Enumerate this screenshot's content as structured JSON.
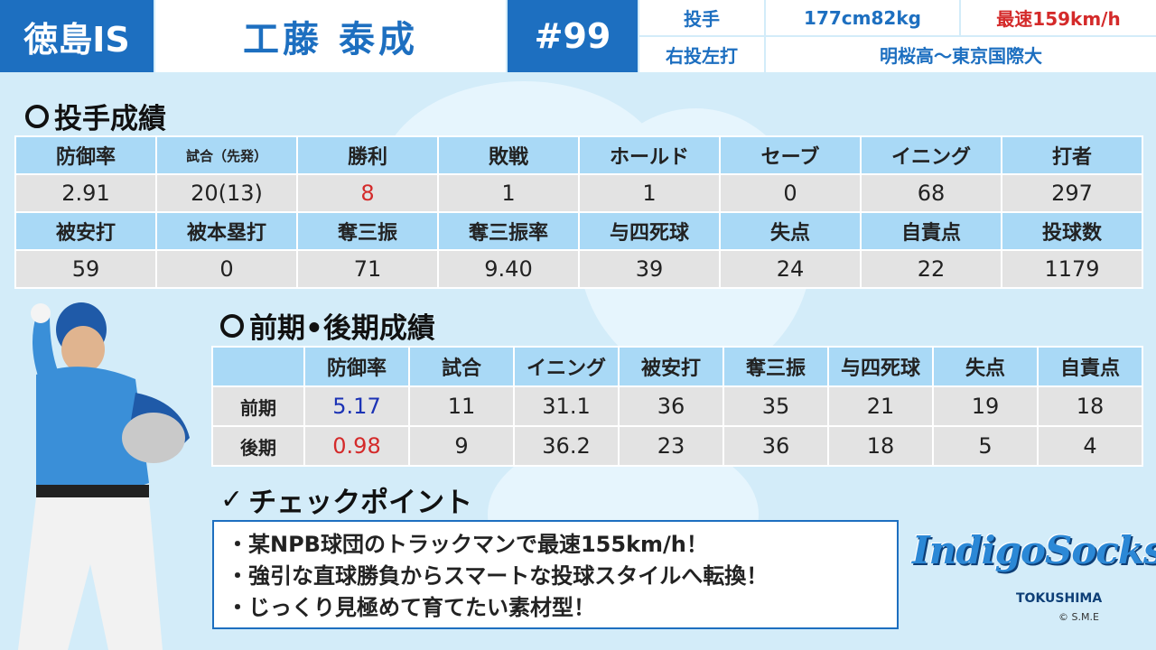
{
  "header": {
    "team": "徳島IS",
    "name": "工藤 泰成",
    "number": "#99",
    "position": "投手",
    "body": "177cm82kg",
    "max_speed": "最速159km/h",
    "handedness": "右投左打",
    "school": "明桜高〜東京国際大"
  },
  "pitching": {
    "title": "投手成績",
    "row1_headers": [
      "防御率",
      "試合（先発）",
      "勝利",
      "敗戦",
      "ホールド",
      "セーブ",
      "イニング",
      "打者"
    ],
    "row1_values": [
      "2.91",
      "20(13)",
      "8",
      "1",
      "1",
      "0",
      "68",
      "297"
    ],
    "row2_headers": [
      "被安打",
      "被本塁打",
      "奪三振",
      "奪三振率",
      "与四死球",
      "失点",
      "自責点",
      "投球数"
    ],
    "row2_values": [
      "59",
      "0",
      "71",
      "9.40",
      "39",
      "24",
      "22",
      "1179"
    ]
  },
  "halves": {
    "title": "前期•後期成績",
    "headers": [
      "防御率",
      "試合",
      "イニング",
      "被安打",
      "奪三振",
      "与四死球",
      "失点",
      "自責点"
    ],
    "rows": [
      {
        "label": "前期",
        "values": [
          "5.17",
          "11",
          "31.1",
          "36",
          "35",
          "21",
          "19",
          "18"
        ]
      },
      {
        "label": "後期",
        "values": [
          "0.98",
          "9",
          "36.2",
          "23",
          "36",
          "18",
          "5",
          "4"
        ]
      }
    ]
  },
  "checkpoints": {
    "title": "チェックポイント",
    "items": [
      "・某NPB球団のトラックマンで最速155km/h！",
      "・強引な直球勝負からスマートな投球スタイルへ転換！",
      "・じっくり見極めて育てたい素材型！"
    ]
  },
  "logo": {
    "text": "IndigoSocks",
    "sub": "TOKUSHIMA",
    "copyright": "© S.M.E"
  },
  "colors": {
    "brand_blue": "#1d6fc0",
    "header_cell": "#a9d9f6",
    "value_cell": "#e3e3e3",
    "highlight_red": "#d42a2a",
    "highlight_blue": "#1c33b5",
    "background": "#d3ecf9"
  }
}
